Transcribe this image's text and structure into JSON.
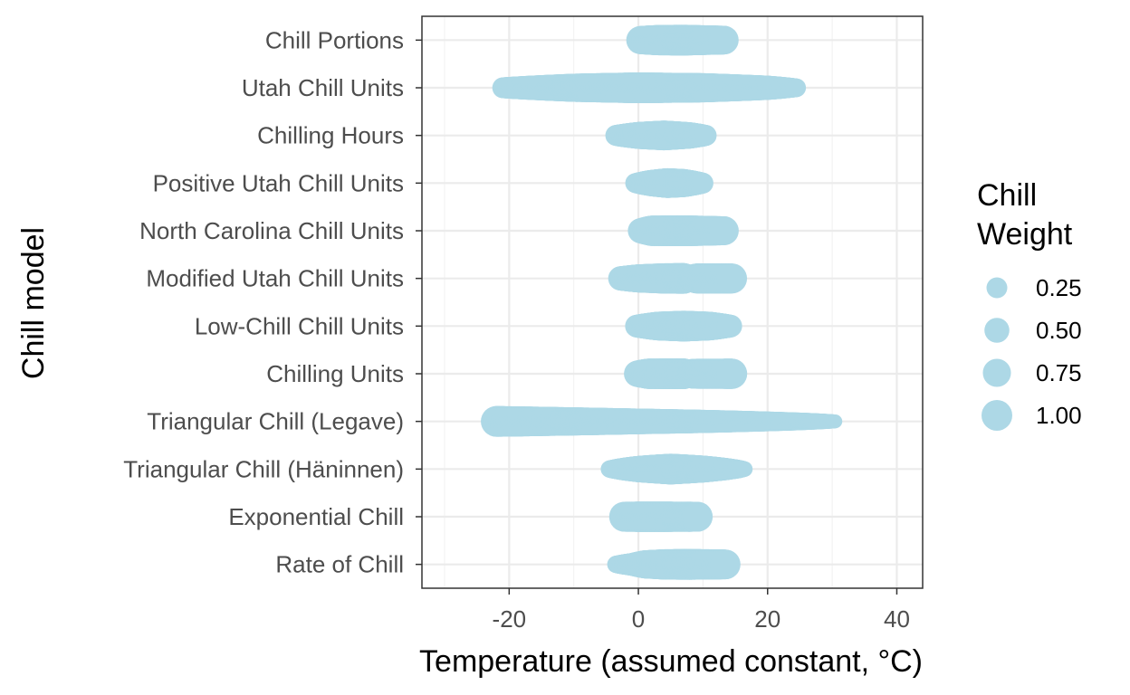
{
  "chart_data": {
    "type": "scatter",
    "xlabel": "Temperature (assumed constant, °C)",
    "ylabel": "Chill model",
    "xlim": [
      -33.5,
      44.0
    ],
    "x_ticks": [
      -20,
      0,
      20,
      40
    ],
    "x_tick_labels": [
      "-20",
      "0",
      "20",
      "40"
    ],
    "grid": true,
    "point_color": "#ADD8E6",
    "categories": [
      "Rate of Chill",
      "Exponential Chill",
      "Triangular Chill (Häninnen)",
      "Triangular Chill (Legave)",
      "Chilling Units",
      "Low-Chill Chill Units",
      "Modified Utah Chill Units",
      "North Carolina Chill Units",
      "Positive Utah Chill Units",
      "Chilling Hours",
      "Utah Chill Units",
      "Chill Portions"
    ],
    "series": [
      {
        "category": "Rate of Chill",
        "profile": [
          [
            -3.5,
            0.1
          ],
          [
            -1,
            0.35
          ],
          [
            1,
            0.75
          ],
          [
            4,
            0.95
          ],
          [
            7,
            1.0
          ],
          [
            10,
            0.97
          ],
          [
            13.5,
            0.9
          ]
        ]
      },
      {
        "category": "Exponential Chill",
        "profile": [
          [
            -2.2,
            0.92
          ],
          [
            0,
            0.95
          ],
          [
            4,
            0.95
          ],
          [
            8,
            0.93
          ],
          [
            9.2,
            0.9
          ]
        ]
      },
      {
        "category": "Triangular Chill (Häninnen)",
        "profile": [
          [
            -4.5,
            0.1
          ],
          [
            0,
            0.6
          ],
          [
            5,
            1.0
          ],
          [
            10,
            0.65
          ],
          [
            16.5,
            0.05
          ]
        ]
      },
      {
        "category": "Triangular Chill (Legave)",
        "profile": [
          [
            -22,
            1.0
          ],
          [
            -10,
            0.75
          ],
          [
            0,
            0.55
          ],
          [
            10,
            0.38
          ],
          [
            20,
            0.2
          ],
          [
            30.5,
            0.02
          ]
        ]
      },
      {
        "category": "Chilling Units",
        "profile": [
          [
            -0.2,
            0.6
          ],
          [
            1.5,
            0.95
          ],
          [
            7,
            1.0
          ],
          [
            8,
            0.5
          ],
          [
            8.5,
            0.92
          ],
          [
            14.5,
            0.95
          ]
        ]
      },
      {
        "category": "Low-Chill Chill Units",
        "profile": [
          [
            -0.3,
            0.35
          ],
          [
            3,
            0.8
          ],
          [
            7,
            1.0
          ],
          [
            11,
            0.8
          ],
          [
            14.3,
            0.35
          ]
        ]
      },
      {
        "category": "Modified Utah Chill Units",
        "profile": [
          [
            -2.8,
            0.45
          ],
          [
            0,
            0.75
          ],
          [
            4,
            0.95
          ],
          [
            7,
            1.0
          ],
          [
            8,
            0.55
          ],
          [
            9,
            0.92
          ],
          [
            14.5,
            0.92
          ]
        ]
      },
      {
        "category": "North Carolina Chill Units",
        "profile": [
          [
            0.3,
            0.5
          ],
          [
            2,
            0.95
          ],
          [
            7,
            1.0
          ],
          [
            10,
            0.92
          ],
          [
            13.3,
            0.82
          ]
        ]
      },
      {
        "category": "Positive Utah Chill Units",
        "profile": [
          [
            -0.5,
            0.2
          ],
          [
            2,
            0.6
          ],
          [
            4.5,
            0.9
          ],
          [
            7,
            0.75
          ],
          [
            10,
            0.25
          ]
        ]
      },
      {
        "category": "Chilling Hours",
        "profile": [
          [
            -3.5,
            0.25
          ],
          [
            0,
            0.65
          ],
          [
            4,
            0.9
          ],
          [
            8,
            0.6
          ],
          [
            10.5,
            0.25
          ]
        ]
      },
      {
        "category": "Utah Chill Units",
        "profile": [
          [
            -21,
            0.25
          ],
          [
            -10,
            0.75
          ],
          [
            0,
            1.0
          ],
          [
            10,
            0.85
          ],
          [
            20,
            0.45
          ],
          [
            24.5,
            0.15
          ]
        ]
      },
      {
        "category": "Chill Portions",
        "profile": [
          [
            0.3,
            0.75
          ],
          [
            3,
            0.95
          ],
          [
            7,
            1.0
          ],
          [
            10,
            0.9
          ],
          [
            13.3,
            0.8
          ]
        ]
      }
    ],
    "legend": {
      "title_lines": [
        "Chill",
        "Weight"
      ],
      "placement": "right",
      "items": [
        {
          "label": "0.25",
          "size": 0.25
        },
        {
          "label": "0.50",
          "size": 0.5
        },
        {
          "label": "0.75",
          "size": 0.75
        },
        {
          "label": "1.00",
          "size": 1.0
        }
      ]
    }
  }
}
